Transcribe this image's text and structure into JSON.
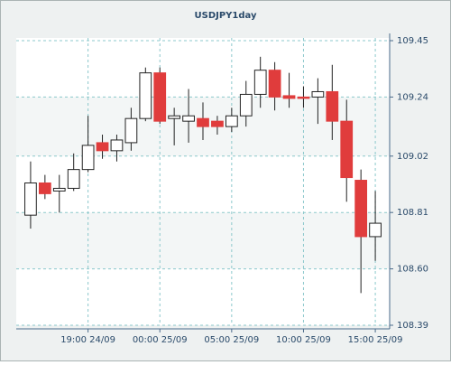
{
  "chart_data": {
    "type": "candlestick",
    "title": "USDJPY1day",
    "categories": [
      null,
      null,
      null,
      null,
      "19:00 24/09",
      null,
      null,
      null,
      null,
      "00:00 25/09",
      null,
      null,
      null,
      null,
      "05:00 25/09",
      null,
      null,
      null,
      null,
      "10:00 25/09",
      null,
      null,
      null,
      null,
      "15:00 25/09"
    ],
    "open": [
      108.8,
      108.92,
      108.89,
      108.9,
      108.97,
      109.07,
      109.04,
      109.07,
      109.16,
      109.33,
      109.16,
      109.15,
      109.16,
      109.15,
      109.13,
      109.17,
      109.25,
      109.34,
      109.245,
      109.24,
      109.24,
      109.26,
      109.15,
      108.93,
      108.72
    ],
    "high": [
      109.0,
      108.95,
      108.95,
      109.03,
      109.17,
      109.1,
      109.1,
      109.2,
      109.35,
      109.35,
      109.2,
      109.27,
      109.22,
      109.17,
      109.2,
      109.3,
      109.39,
      109.37,
      109.33,
      109.28,
      109.31,
      109.36,
      109.23,
      108.97,
      108.89
    ],
    "low": [
      108.75,
      108.86,
      108.81,
      108.89,
      108.96,
      109.01,
      109.0,
      109.04,
      109.15,
      109.14,
      109.06,
      109.07,
      109.08,
      109.1,
      109.11,
      109.13,
      109.2,
      109.19,
      109.2,
      109.2,
      109.14,
      109.08,
      108.85,
      108.51,
      108.63
    ],
    "close": [
      108.92,
      108.88,
      108.9,
      108.97,
      109.06,
      109.04,
      109.08,
      109.16,
      109.33,
      109.15,
      109.17,
      109.17,
      109.13,
      109.13,
      109.17,
      109.25,
      109.34,
      109.24,
      109.235,
      109.235,
      109.26,
      109.15,
      108.94,
      108.72,
      108.77
    ],
    "up_color": "#ffffff",
    "down_color": "#e03c3c",
    "ylim": [
      108.39,
      109.45
    ],
    "yticks": [
      109.45,
      109.24,
      109.02,
      108.81,
      {
        "value": 108.6,
        "label": "108.60"
      },
      108.39
    ],
    "grid": true
  }
}
